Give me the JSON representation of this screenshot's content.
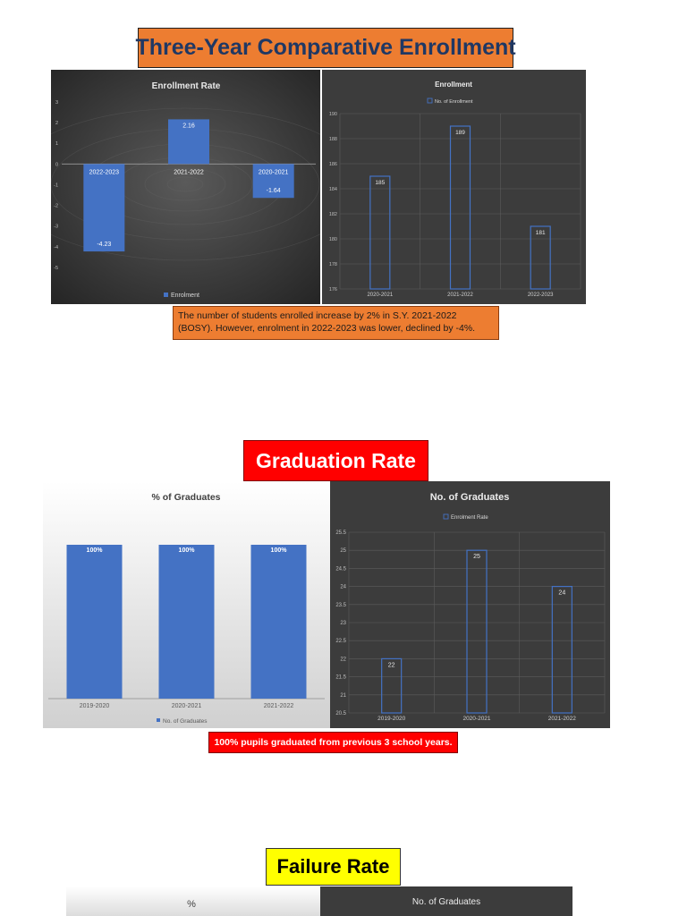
{
  "sections": {
    "enrollment_title": "Three-Year Comparative Enrollment",
    "enrollment_note": "The number of students enrolled increase by 2% in S.Y. 2021-2022 (BOSY). However, enrolment in 2022-2023 was lower, declined by -4%.",
    "graduation_title": "Graduation Rate",
    "graduation_note": "100% pupils graduated from previous 3 school years.",
    "failure_title": "Failure Rate"
  },
  "colors": {
    "bar_blue": "#4472c4",
    "dark_panel": "#3c3c3c",
    "orange": "#ed7d31",
    "red": "#ff0000",
    "yellow": "#ffff00"
  },
  "chart_data": [
    {
      "type": "bar",
      "title": "Enrollment Rate",
      "categories": [
        "2022-2023",
        "2021-2022",
        "2020-2021"
      ],
      "series": [
        {
          "name": "Enrolment",
          "values": [
            -4.23,
            2.16,
            -1.64
          ]
        }
      ],
      "data_labels": [
        "-4.23",
        "2.16",
        "-1.64"
      ],
      "ylim": [
        -6,
        3
      ],
      "yticks": [
        3,
        2,
        1,
        0,
        -1,
        -2,
        -3,
        -4,
        -5
      ],
      "grid": false,
      "legend": "bottom"
    },
    {
      "type": "bar",
      "title": "Enrollment",
      "categories": [
        "2020-2021",
        "2021-2022",
        "2022-2023"
      ],
      "series": [
        {
          "name": "No. of Enrollment",
          "values": [
            185,
            189,
            181
          ]
        }
      ],
      "data_labels": [
        "185",
        "189",
        "181"
      ],
      "ylim": [
        176,
        190
      ],
      "yticks": [
        190,
        188,
        186,
        184,
        182,
        180,
        178,
        176
      ],
      "grid": true,
      "legend": "top"
    },
    {
      "type": "bar",
      "title": "% of Graduates",
      "categories": [
        "2019-2020",
        "2020-2021",
        "2021-2022"
      ],
      "series": [
        {
          "name": "No. of Graduates",
          "values": [
            100,
            100,
            100
          ]
        }
      ],
      "data_labels": [
        "100%",
        "100%",
        "100%"
      ],
      "ylim": [
        0,
        100
      ],
      "grid": false,
      "legend": "bottom"
    },
    {
      "type": "bar",
      "title": "No. of Graduates",
      "categories": [
        "2019-2020",
        "2020-2021",
        "2021-2022"
      ],
      "series": [
        {
          "name": "Enrolment Rate",
          "values": [
            22,
            25,
            24
          ]
        }
      ],
      "data_labels": [
        "22",
        "25",
        "24"
      ],
      "ylim": [
        20.5,
        25.5
      ],
      "yticks": [
        "25.5",
        "25",
        "24.5",
        "24",
        "23.5",
        "23",
        "22.5",
        "22",
        "21.5",
        "21",
        "20.5"
      ],
      "grid": true,
      "legend": "top"
    },
    {
      "type": "bar",
      "title": "%"
    },
    {
      "type": "bar",
      "title": "No. of Graduates"
    }
  ]
}
